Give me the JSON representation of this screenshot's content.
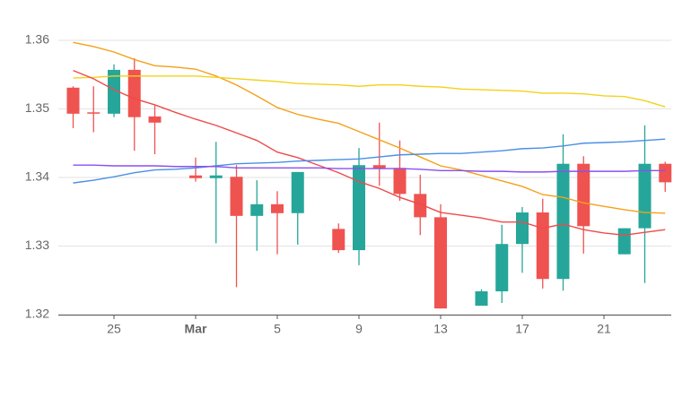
{
  "chart_data": {
    "type": "candlestick",
    "categories": [
      null,
      null,
      "25",
      null,
      null,
      null,
      "Mar",
      null,
      null,
      null,
      "5",
      null,
      null,
      null,
      "9",
      null,
      null,
      null,
      "13",
      null,
      null,
      null,
      "17",
      null,
      null,
      null,
      "21",
      null,
      null,
      null
    ],
    "open": [
      1.3531,
      1.3495,
      1.3493,
      1.3557,
      1.3489,
      null,
      1.3403,
      1.3399,
      1.3401,
      1.3344,
      1.3361,
      1.3348,
      null,
      1.3325,
      1.3294,
      1.3418,
      1.3414,
      1.3376,
      1.3342,
      null,
      1.3213,
      1.3234,
      1.3303,
      1.3349,
      1.3252,
      1.342,
      null,
      1.3288,
      1.3326,
      1.342
    ],
    "high": [
      1.3533,
      1.3533,
      1.3565,
      1.3574,
      1.3505,
      null,
      1.3429,
      1.3452,
      1.3418,
      1.3396,
      1.338,
      1.3408,
      null,
      1.3333,
      1.3443,
      1.348,
      1.3454,
      1.3404,
      1.3361,
      null,
      1.3237,
      1.3331,
      1.3357,
      1.3369,
      1.3463,
      1.3431,
      null,
      1.3326,
      1.3476,
      1.3423
    ],
    "low": [
      1.3472,
      1.3466,
      1.3488,
      1.3439,
      1.3434,
      null,
      1.3394,
      1.3304,
      1.324,
      1.3293,
      1.3288,
      1.3302,
      null,
      1.329,
      1.3272,
      1.3388,
      1.3366,
      1.3316,
      1.3209,
      null,
      1.3213,
      1.3217,
      1.3261,
      1.3238,
      1.3235,
      1.3289,
      null,
      1.3288,
      1.3246,
      1.3379
    ],
    "close": [
      1.3493,
      1.3494,
      1.3557,
      1.3488,
      1.348,
      null,
      1.3399,
      1.3403,
      1.3344,
      1.3361,
      1.3348,
      1.3408,
      null,
      1.3294,
      1.3418,
      1.3413,
      1.3376,
      1.3342,
      1.3209,
      null,
      1.3234,
      1.3303,
      1.3349,
      1.3252,
      1.342,
      1.3329,
      null,
      1.3326,
      1.342,
      1.3393
    ],
    "up_color": "#26a69a",
    "down_color": "#ef5350",
    "lines": [
      {
        "color": "#f5a01a",
        "values": [
          1.3597,
          1.3591,
          1.3583,
          1.3572,
          1.3563,
          1.3561,
          1.3558,
          1.3548,
          1.3535,
          1.3519,
          1.3502,
          1.3492,
          1.3485,
          1.3479,
          1.3467,
          1.3455,
          1.3443,
          1.343,
          1.3417,
          1.3411,
          1.3403,
          1.3395,
          1.3387,
          1.3375,
          1.3371,
          1.3363,
          1.3358,
          1.3353,
          1.3349,
          1.3348
        ]
      },
      {
        "color": "#f2d21b",
        "values": [
          1.3545,
          1.3546,
          1.3548,
          1.3548,
          1.3548,
          1.3548,
          1.3548,
          1.3546,
          1.3544,
          1.3542,
          1.354,
          1.3537,
          1.3536,
          1.3535,
          1.3533,
          1.3535,
          1.3535,
          1.3533,
          1.3532,
          1.3529,
          1.3528,
          1.3527,
          1.3526,
          1.3523,
          1.3523,
          1.3522,
          1.3519,
          1.3518,
          1.3512,
          1.3503
        ]
      },
      {
        "color": "#ef4a4a",
        "values": [
          1.3556,
          1.3544,
          1.3528,
          1.3515,
          1.3506,
          1.3495,
          1.3485,
          1.3476,
          1.3465,
          1.3454,
          1.3437,
          1.3429,
          1.3418,
          1.3407,
          1.3394,
          1.3384,
          1.3371,
          1.3361,
          1.3349,
          1.3345,
          1.3341,
          1.3335,
          1.3335,
          1.3326,
          1.3332,
          1.3324,
          1.3319,
          1.3316,
          1.332,
          1.3324
        ]
      },
      {
        "color": "#4a8fe6",
        "values": [
          1.3392,
          1.3396,
          1.3401,
          1.3407,
          1.3411,
          1.3412,
          1.3414,
          1.3417,
          1.342,
          1.3421,
          1.3422,
          1.3424,
          1.3425,
          1.3426,
          1.3427,
          1.343,
          1.3433,
          1.3434,
          1.3435,
          1.3435,
          1.3437,
          1.3439,
          1.3442,
          1.3443,
          1.3446,
          1.345,
          1.3451,
          1.3452,
          1.3454,
          1.3456
        ]
      },
      {
        "color": "#8b4ff0",
        "values": [
          1.3418,
          1.3418,
          1.3417,
          1.3417,
          1.3417,
          1.3416,
          1.3416,
          1.3416,
          1.3414,
          1.3414,
          1.3414,
          1.3414,
          1.3414,
          1.3413,
          1.3413,
          1.3413,
          1.3413,
          1.3412,
          1.341,
          1.341,
          1.3409,
          1.3409,
          1.3408,
          1.3408,
          1.3409,
          1.3409,
          1.3409,
          1.3409,
          1.341,
          1.341
        ]
      }
    ],
    "ylim": [
      1.32,
      1.36
    ],
    "yticks": [
      1.32,
      1.33,
      1.34,
      1.35,
      1.36
    ],
    "grid": true
  }
}
